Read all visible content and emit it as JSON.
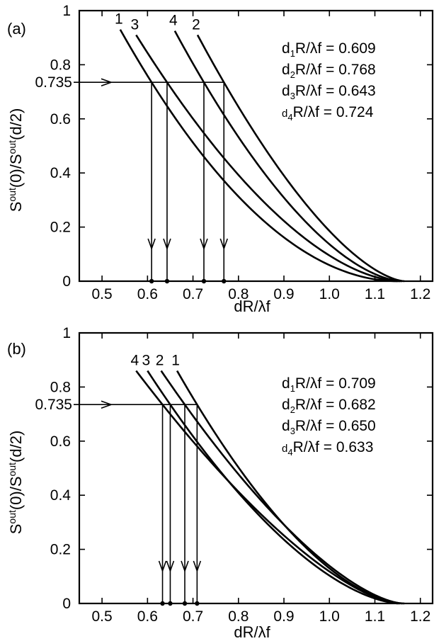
{
  "chart_data": [
    {
      "type": "line",
      "panel_label": "(a)",
      "xlabel": "dR/λf",
      "ylabel_html": "S<tspan class='sup'>out</tspan>(0)/S<tspan class='sup'>out</tspan>(d/2)",
      "ylabel_parts": [
        "S",
        "out",
        "(0)/S",
        "out",
        "(d/2)"
      ],
      "xlim": [
        0.45,
        1.23
      ],
      "ylim": [
        0,
        1
      ],
      "xticks": [
        "0.5",
        "0.6",
        "0.7",
        "0.8",
        "0.9",
        "1.0",
        "1.1",
        "1.2"
      ],
      "xtick_values": [
        0.5,
        0.6,
        0.7,
        0.8,
        0.9,
        1.0,
        1.1,
        1.2
      ],
      "yticks": [
        "0",
        "0.2",
        "0.4",
        "0.6",
        "0.8",
        "1"
      ],
      "ytick_values": [
        0,
        0.2,
        0.4,
        0.6,
        0.8,
        1.0
      ],
      "threshold": 0.735,
      "threshold_label": "0.735",
      "series": [
        {
          "name": "1",
          "x0": 0.54,
          "y0": 0.93,
          "cross": 0.609,
          "end": 1.15
        },
        {
          "name": "3",
          "x0": 0.575,
          "y0": 0.91,
          "cross": 0.643,
          "end": 1.155
        },
        {
          "name": "4",
          "x0": 0.66,
          "y0": 0.925,
          "cross": 0.724,
          "end": 1.16
        },
        {
          "name": "2",
          "x0": 0.71,
          "y0": 0.91,
          "cross": 0.768,
          "end": 1.165
        }
      ],
      "annotations": [
        {
          "sub": "1",
          "text": "d₁R/λf = 0.609",
          "pre": "d",
          "post": "R/λf = 0.609"
        },
        {
          "sub": "2",
          "text": "d₂R/λf = 0.768",
          "pre": "d",
          "post": "R/λf = 0.768"
        },
        {
          "sub": "3",
          "text": "d₃R/λf = 0.643",
          "pre": "d",
          "post": "R/λf = 0.643"
        },
        {
          "sub": "4",
          "text": "d₄R/λf = 0.724",
          "pre": "d",
          "post": "R/λf = 0.724",
          "small": true
        }
      ]
    },
    {
      "type": "line",
      "panel_label": "(b)",
      "xlabel": "dR/λf",
      "ylabel_parts": [
        "S",
        "out",
        "(0)/S",
        "out",
        "(d/2)"
      ],
      "xlim": [
        0.45,
        1.23
      ],
      "ylim": [
        0,
        1
      ],
      "xticks": [
        "0.5",
        "0.6",
        "0.7",
        "0.8",
        "0.9",
        "1.0",
        "1.1",
        "1.2"
      ],
      "xtick_values": [
        0.5,
        0.6,
        0.7,
        0.8,
        0.9,
        1.0,
        1.1,
        1.2
      ],
      "yticks": [
        "0",
        "0.2",
        "0.4",
        "0.6",
        "0.8",
        "1"
      ],
      "ytick_values": [
        0,
        0.2,
        0.4,
        0.6,
        0.8,
        1.0
      ],
      "threshold": 0.735,
      "threshold_label": "0.735",
      "series": [
        {
          "name": "4",
          "x0": 0.575,
          "y0": 0.86,
          "cross": 0.633,
          "end": 1.15
        },
        {
          "name": "3",
          "x0": 0.6,
          "y0": 0.86,
          "cross": 0.65,
          "end": 1.155
        },
        {
          "name": "2",
          "x0": 0.63,
          "y0": 0.86,
          "cross": 0.682,
          "end": 1.16
        },
        {
          "name": "1",
          "x0": 0.665,
          "y0": 0.86,
          "cross": 0.709,
          "end": 1.165
        }
      ],
      "annotations": [
        {
          "sub": "1",
          "text": "d₁R/λf = 0.709",
          "pre": "d",
          "post": "R/λf = 0.709"
        },
        {
          "sub": "2",
          "text": "d₂R/λf = 0.682",
          "pre": "d",
          "post": "R/λf = 0.682"
        },
        {
          "sub": "3",
          "text": "d₃R/λf = 0.650",
          "pre": "d",
          "post": "R/λf = 0.650"
        },
        {
          "sub": "4",
          "text": "d₄R/λf = 0.633",
          "pre": "d",
          "post": "R/λf = 0.633",
          "small": true
        }
      ]
    }
  ]
}
